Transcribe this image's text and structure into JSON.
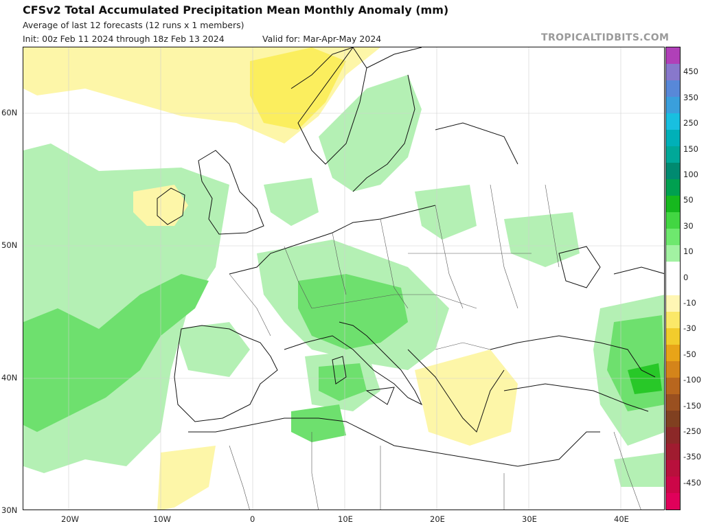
{
  "header": {
    "title": "CFSv2 Total Accumulated Precipitation Mean Monthly Anomaly (mm)",
    "subtitle": "Average of last 12 forecasts (12 runs x 1 members)",
    "init": "Init: 00z Feb 11 2024 through 18z Feb 13 2024",
    "valid": "Valid for: Mar-Apr-May 2024",
    "watermark": "TROPICALTIDBITS.COM"
  },
  "map": {
    "projection": "lat-lon",
    "lon_range": [
      -25,
      45
    ],
    "lat_range": [
      30,
      65
    ],
    "lat_labels": [
      "60N",
      "50N",
      "40N",
      "30N"
    ],
    "lon_labels": [
      "20W",
      "10W",
      "0",
      "10E",
      "20E",
      "30E",
      "40E"
    ],
    "colors": {
      "wet_light": "#b4f0b4",
      "wet_medium": "#6ee06e",
      "wet_strong": "#28c828",
      "dry_light": "#fdf6a8",
      "dry_medium": "#fbee5e",
      "coastline": "#111111",
      "borders": "#888888"
    }
  },
  "colorbar": {
    "labels": [
      "450",
      "350",
      "250",
      "150",
      "100",
      "50",
      "30",
      "10",
      "0",
      "-10",
      "-30",
      "-50",
      "-100",
      "-150",
      "-250",
      "-350",
      "-450"
    ],
    "colors": [
      "#b040b8",
      "#8878cc",
      "#5888d8",
      "#3a9fdc",
      "#18bfe0",
      "#00b0b8",
      "#00a898",
      "#008a70",
      "#00a050",
      "#16b81e",
      "#42d642",
      "#6ee86e",
      "#a2f2a2",
      "#ffffff",
      "#ffffff",
      "#fff6b4",
      "#fbe868",
      "#f2cc2c",
      "#e8a418",
      "#d4841a",
      "#b8661e",
      "#9a5020",
      "#804020",
      "#8c2828",
      "#a01c30",
      "#b8103c",
      "#cc0648",
      "#e0005a"
    ]
  }
}
